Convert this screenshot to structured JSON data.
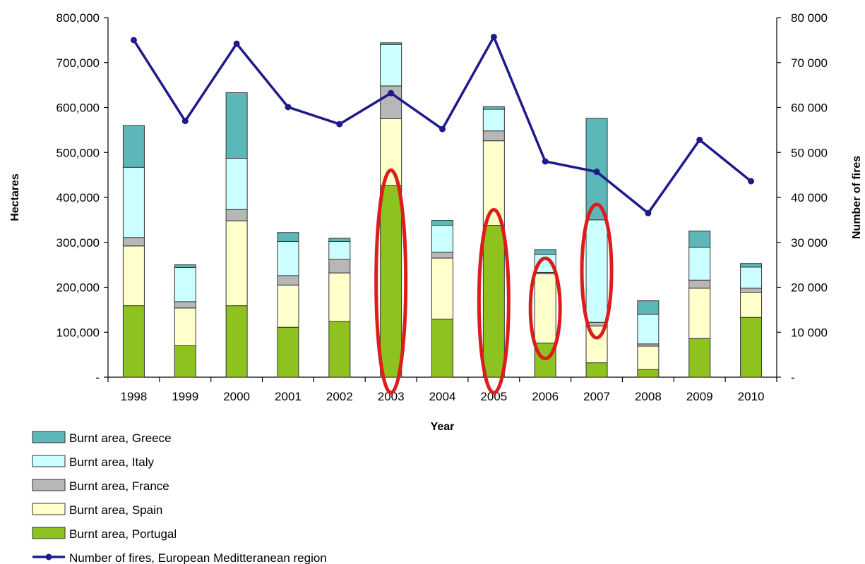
{
  "chart_data": {
    "type": "bar",
    "stacked": true,
    "categories": [
      "1998",
      "1999",
      "2000",
      "2001",
      "2002",
      "2003",
      "2004",
      "2005",
      "2006",
      "2007",
      "2008",
      "2009",
      "2010"
    ],
    "xlabel": "Year",
    "ylabel": "Hectares",
    "y2label": "Number of fires",
    "ylim": [
      0,
      800000
    ],
    "y2lim": [
      0,
      80000
    ],
    "yticks": [
      "-",
      "100,000",
      "200,000",
      "300,000",
      "400,000",
      "500,000",
      "600,000",
      "700,000",
      "800,000"
    ],
    "y2ticks": [
      "-",
      "10 000",
      "20 000",
      "30 000",
      "40 000",
      "50 000",
      "60 000",
      "70 000",
      "80 000"
    ],
    "grid": false,
    "legend_position": "bottom-left",
    "series": [
      {
        "name": "Burnt area, Portugal",
        "color": "#8dc21f",
        "values": [
          159000,
          70000,
          159000,
          111000,
          124000,
          426000,
          129000,
          338000,
          76000,
          32000,
          17000,
          86000,
          133000
        ]
      },
      {
        "name": "Burnt area, Spain",
        "color": "#ffffcc",
        "values": [
          133000,
          84000,
          189000,
          94000,
          108000,
          149000,
          136000,
          188000,
          154000,
          82000,
          52000,
          112000,
          56000
        ]
      },
      {
        "name": "Burnt area, France",
        "color": "#b7b7b7",
        "values": [
          19000,
          14000,
          25000,
          21000,
          30000,
          73000,
          13000,
          22000,
          3000,
          8000,
          5000,
          18000,
          9000
        ]
      },
      {
        "name": "Burnt area, Italy",
        "color": "#ccffff",
        "values": [
          156000,
          76000,
          114000,
          76000,
          40000,
          92000,
          60000,
          48000,
          40000,
          228000,
          66000,
          73000,
          47000
        ]
      },
      {
        "name": "Burnt area, Greece",
        "color": "#5cb8b8",
        "values": [
          93000,
          6000,
          146000,
          20000,
          7000,
          4000,
          11000,
          6000,
          11000,
          226000,
          30000,
          36000,
          8000
        ]
      }
    ],
    "line_series": {
      "name": "Number of fires, European Meditteranean region",
      "color": "#1f1a8c",
      "axis": "right",
      "values": [
        75000,
        57000,
        74200,
        60100,
        56300,
        63200,
        55200,
        75700,
        48000,
        45700,
        36500,
        52800,
        43600
      ]
    },
    "highlights": [
      {
        "category": "2003",
        "color": "#dd1c1c"
      },
      {
        "category": "2005",
        "color": "#dd1c1c"
      },
      {
        "category": "2006",
        "color": "#dd1c1c"
      },
      {
        "category": "2007",
        "color": "#dd1c1c"
      }
    ]
  }
}
